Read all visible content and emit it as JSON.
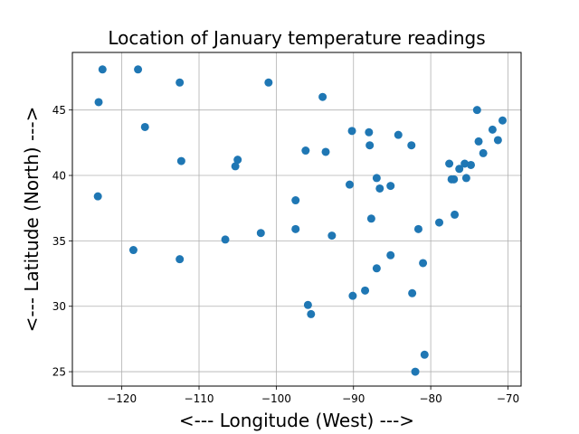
{
  "chart_data": {
    "type": "scatter",
    "title": "Location of January temperature readings",
    "xlabel": "<--- Longitude (West) --->",
    "ylabel": "<--- Latitude (North) --->",
    "xlim": [
      -126.4,
      -68.3
    ],
    "ylim": [
      23.9,
      49.4
    ],
    "xticks": [
      -120,
      -110,
      -100,
      -90,
      -80,
      -70
    ],
    "yticks": [
      25,
      30,
      35,
      40,
      45
    ],
    "grid": true,
    "marker_color": "#1f77b4",
    "points": [
      {
        "x": -122.5,
        "y": 48.1
      },
      {
        "x": -117.9,
        "y": 48.1
      },
      {
        "x": -112.5,
        "y": 47.1
      },
      {
        "x": -101.0,
        "y": 47.1
      },
      {
        "x": -123.0,
        "y": 45.6
      },
      {
        "x": -94.0,
        "y": 46.0
      },
      {
        "x": -117.0,
        "y": 43.7
      },
      {
        "x": -90.2,
        "y": 43.4
      },
      {
        "x": -88.0,
        "y": 43.3
      },
      {
        "x": -84.2,
        "y": 43.1
      },
      {
        "x": -82.5,
        "y": 42.3
      },
      {
        "x": -87.9,
        "y": 42.3
      },
      {
        "x": -96.2,
        "y": 41.9
      },
      {
        "x": -93.6,
        "y": 41.8
      },
      {
        "x": -112.3,
        "y": 41.1
      },
      {
        "x": -105.0,
        "y": 41.2
      },
      {
        "x": -105.3,
        "y": 40.7
      },
      {
        "x": -123.1,
        "y": 38.4
      },
      {
        "x": -97.5,
        "y": 38.1
      },
      {
        "x": -90.5,
        "y": 39.3
      },
      {
        "x": -87.0,
        "y": 39.8
      },
      {
        "x": -86.6,
        "y": 39.0
      },
      {
        "x": -85.2,
        "y": 39.2
      },
      {
        "x": -87.7,
        "y": 36.7
      },
      {
        "x": -81.6,
        "y": 35.9
      },
      {
        "x": -78.9,
        "y": 36.4
      },
      {
        "x": -76.9,
        "y": 37.0
      },
      {
        "x": -106.6,
        "y": 35.1
      },
      {
        "x": -102.0,
        "y": 35.6
      },
      {
        "x": -97.5,
        "y": 35.9
      },
      {
        "x": -92.8,
        "y": 35.4
      },
      {
        "x": -118.5,
        "y": 34.3
      },
      {
        "x": -112.5,
        "y": 33.6
      },
      {
        "x": -85.2,
        "y": 33.9
      },
      {
        "x": -87.0,
        "y": 32.9
      },
      {
        "x": -81.0,
        "y": 33.3
      },
      {
        "x": -88.5,
        "y": 31.2
      },
      {
        "x": -82.4,
        "y": 31.0
      },
      {
        "x": -90.1,
        "y": 30.8
      },
      {
        "x": -95.9,
        "y": 30.1
      },
      {
        "x": -95.5,
        "y": 29.4
      },
      {
        "x": -80.8,
        "y": 26.3
      },
      {
        "x": -82.0,
        "y": 25.0
      },
      {
        "x": -77.6,
        "y": 40.9
      },
      {
        "x": -77.3,
        "y": 39.7
      },
      {
        "x": -77.0,
        "y": 39.7
      },
      {
        "x": -76.3,
        "y": 40.5
      },
      {
        "x": -75.6,
        "y": 40.9
      },
      {
        "x": -75.4,
        "y": 39.8
      },
      {
        "x": -74.8,
        "y": 40.8
      },
      {
        "x": -73.2,
        "y": 41.7
      },
      {
        "x": -73.8,
        "y": 42.6
      },
      {
        "x": -71.3,
        "y": 42.7
      },
      {
        "x": -72.0,
        "y": 43.5
      },
      {
        "x": -70.7,
        "y": 44.2
      },
      {
        "x": -74.0,
        "y": 45.0
      }
    ]
  }
}
